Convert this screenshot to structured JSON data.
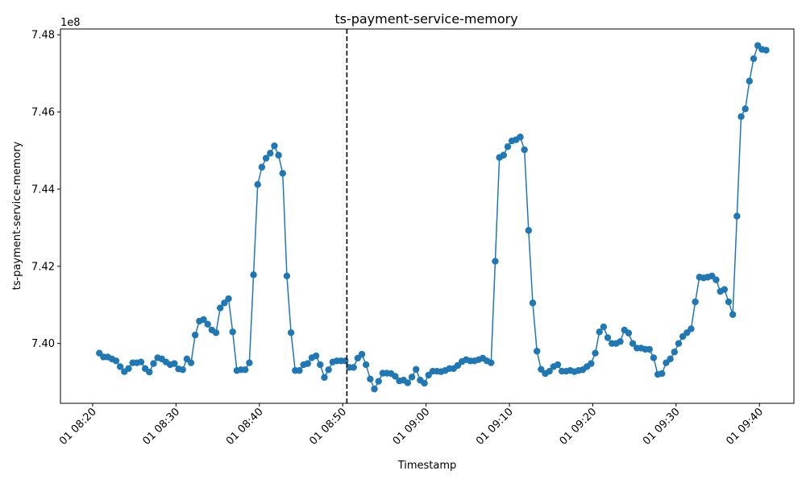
{
  "chart_data": {
    "type": "line",
    "title": "ts-payment-service-memory",
    "xlabel": "Timestamp",
    "ylabel": "ts-payment-service-memory",
    "y_multiplier": "1e8",
    "x_ticks": [
      "01 08:20",
      "01 08:30",
      "01 08:40",
      "01 08:50",
      "01 09:00",
      "01 09:10",
      "01 09:20",
      "01 09:30",
      "01 09:40"
    ],
    "y_ticks": [
      "7.40",
      "7.42",
      "7.44",
      "7.46",
      "7.48"
    ],
    "xlim": [
      "08:16:08",
      "09:44:08"
    ],
    "ylim": [
      7.3845,
      7.4815
    ],
    "color": "#1f77b4",
    "marker": "circle",
    "vline": {
      "x": "08:50:30",
      "style": "dashed",
      "color": "#000000"
    },
    "series": [
      {
        "x": [
          "08:20:48",
          "08:21:18",
          "08:21:48",
          "08:22:18",
          "08:22:48",
          "08:23:18",
          "08:23:48",
          "08:24:18",
          "08:24:48",
          "08:25:18",
          "08:25:48",
          "08:26:18",
          "08:26:48",
          "08:27:18",
          "08:27:48",
          "08:28:18",
          "08:28:48",
          "08:29:18",
          "08:29:48",
          "08:30:18",
          "08:30:48",
          "08:31:18",
          "08:31:48",
          "08:32:18",
          "08:32:48",
          "08:33:18",
          "08:33:48",
          "08:34:18",
          "08:34:48",
          "08:35:18",
          "08:35:48",
          "08:36:18",
          "08:36:48",
          "08:37:18",
          "08:37:48",
          "08:38:18",
          "08:38:48",
          "08:39:18",
          "08:39:48",
          "08:40:18",
          "08:40:48",
          "08:41:18",
          "08:41:48",
          "08:42:18",
          "08:42:48",
          "08:43:18",
          "08:43:48",
          "08:44:18",
          "08:44:48",
          "08:45:18",
          "08:45:48",
          "08:46:18",
          "08:46:48",
          "08:47:18",
          "08:47:48",
          "08:48:18",
          "08:48:48",
          "08:49:18",
          "08:49:48",
          "08:50:18",
          "08:50:48",
          "08:51:18",
          "08:51:48",
          "08:52:18",
          "08:52:48",
          "08:53:18",
          "08:53:48",
          "08:54:18",
          "08:54:48",
          "08:55:18",
          "08:55:48",
          "08:56:18",
          "08:56:48",
          "08:57:18",
          "08:57:48",
          "08:58:18",
          "08:58:48",
          "08:59:18",
          "08:59:48",
          "09:00:18",
          "09:00:48",
          "09:01:18",
          "09:01:48",
          "09:02:18",
          "09:02:48",
          "09:03:18",
          "09:03:48",
          "09:04:18",
          "09:04:48",
          "09:05:18",
          "09:05:48",
          "09:06:18",
          "09:06:48",
          "09:07:18",
          "09:07:48",
          "09:08:18",
          "09:08:48",
          "09:09:18",
          "09:09:48",
          "09:10:18",
          "09:10:48",
          "09:11:18",
          "09:11:48",
          "09:12:18",
          "09:12:48",
          "09:13:18",
          "09:13:48",
          "09:14:18",
          "09:14:48",
          "09:15:18",
          "09:15:48",
          "09:16:18",
          "09:16:48",
          "09:17:18",
          "09:17:48",
          "09:18:18",
          "09:18:48",
          "09:19:18",
          "09:19:48",
          "09:20:18",
          "09:20:48",
          "09:21:18",
          "09:21:48",
          "09:22:18",
          "09:22:48",
          "09:23:18",
          "09:23:48",
          "09:24:18",
          "09:24:48",
          "09:25:18",
          "09:25:48",
          "09:26:18",
          "09:26:48",
          "09:27:18",
          "09:27:48",
          "09:28:18",
          "09:28:48",
          "09:29:18",
          "09:29:48",
          "09:30:18",
          "09:30:48",
          "09:31:18",
          "09:31:48",
          "09:32:18",
          "09:32:48",
          "09:33:18",
          "09:33:48",
          "09:34:18",
          "09:34:48",
          "09:35:18",
          "09:35:48",
          "09:36:18",
          "09:36:48",
          "09:37:18",
          "09:37:48",
          "09:38:18",
          "09:38:48",
          "09:39:18",
          "09:39:48",
          "09:40:18",
          "09:40:48"
        ],
        "values": [
          7.3975,
          7.3965,
          7.3965,
          7.396,
          7.3955,
          7.394,
          7.3927,
          7.3935,
          7.395,
          7.395,
          7.3952,
          7.3935,
          7.3926,
          7.3948,
          7.3963,
          7.396,
          7.3952,
          7.3945,
          7.3948,
          7.3934,
          7.3932,
          7.396,
          7.395,
          7.4022,
          7.4058,
          7.4062,
          7.405,
          7.4035,
          7.4028,
          7.4092,
          7.4105,
          7.4116,
          7.403,
          7.393,
          7.3932,
          7.3932,
          7.395,
          7.4178,
          7.4412,
          7.4457,
          7.448,
          7.4493,
          7.4512,
          7.4488,
          7.4441,
          7.4175,
          7.4028,
          7.393,
          7.393,
          7.3945,
          7.3948,
          7.3963,
          7.3968,
          7.3945,
          7.3912,
          7.3932,
          7.3952,
          7.3955,
          7.3955,
          7.3955,
          7.3938,
          7.3938,
          7.3962,
          7.3972,
          7.3945,
          7.3908,
          7.3882,
          7.3902,
          7.3923,
          7.3923,
          7.3922,
          7.3915,
          7.3903,
          7.3905,
          7.3898,
          7.3913,
          7.3933,
          7.3905,
          7.3897,
          7.3918,
          7.3928,
          7.3928,
          7.3927,
          7.393,
          7.3935,
          7.3935,
          7.3943,
          7.3953,
          7.3958,
          7.3955,
          7.3955,
          7.3958,
          7.3962,
          7.3955,
          7.395,
          7.4213,
          7.4482,
          7.4488,
          7.451,
          7.4525,
          7.4528,
          7.4535,
          7.4502,
          7.4293,
          7.4105,
          7.398,
          7.3933,
          7.3922,
          7.3928,
          7.394,
          7.3945,
          7.3928,
          7.3928,
          7.393,
          7.3927,
          7.393,
          7.3932,
          7.394,
          7.3948,
          7.3975,
          7.403,
          7.4043,
          7.4015,
          7.4,
          7.4,
          7.4005,
          7.4035,
          7.4027,
          7.4,
          7.3988,
          7.3988,
          7.3985,
          7.3985,
          7.3963,
          7.392,
          7.3922,
          7.395,
          7.396,
          7.3978,
          7.4,
          7.4018,
          7.4028,
          7.4038,
          7.4108,
          7.4172,
          7.417,
          7.4172,
          7.4175,
          7.4165,
          7.4135,
          7.414,
          7.4108,
          7.4075,
          7.433,
          7.4588,
          7.4608,
          7.468,
          7.4738,
          7.4772,
          7.4762,
          7.476
        ]
      }
    ]
  }
}
